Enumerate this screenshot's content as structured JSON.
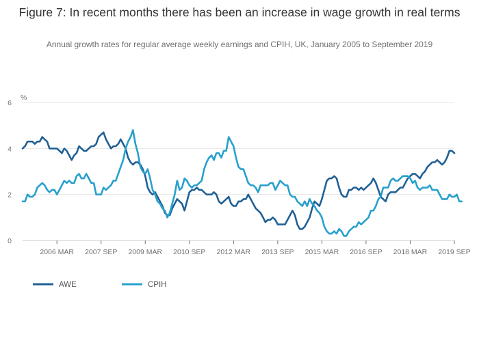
{
  "header": {
    "title": "Figure 7: In recent months there has been an increase in wage growth in real terms",
    "subtitle": "Annual growth rates for regular average weekly earnings and CPIH, UK, January 2005 to September 2019"
  },
  "chart_data": {
    "type": "line",
    "title": "Figure 7: In recent months there has been an increase in wage growth in real terms",
    "subtitle": "Annual growth rates for regular average weekly earnings and CPIH, UK, January 2005 to September 2019",
    "ylabel": "%",
    "xlabel": "",
    "ylim": [
      0,
      6
    ],
    "yticks": [
      0,
      2,
      4,
      6
    ],
    "xlim": [
      "2005-01",
      "2019-09"
    ],
    "xticks": [
      {
        "x": "2006-03",
        "label": "2006 MAR"
      },
      {
        "x": "2007-09",
        "label": "2007 SEP"
      },
      {
        "x": "2009-03",
        "label": "2009 MAR"
      },
      {
        "x": "2010-09",
        "label": "2010 SEP"
      },
      {
        "x": "2012-03",
        "label": "2012 MAR"
      },
      {
        "x": "2013-09",
        "label": "2013 SEP"
      },
      {
        "x": "2015-03",
        "label": "2015 MAR"
      },
      {
        "x": "2016-09",
        "label": "2016 SEP"
      },
      {
        "x": "2018-03",
        "label": "2018 MAR"
      },
      {
        "x": "2019-09",
        "label": "2019 SEP"
      }
    ],
    "grid": true,
    "legend": "bottom-left",
    "x_frequency": "monthly",
    "series": [
      {
        "name": "AWE",
        "color": "#206095",
        "x_start": "2005-01",
        "values": [
          4.0,
          4.1,
          4.3,
          4.3,
          4.3,
          4.2,
          4.3,
          4.3,
          4.5,
          4.4,
          4.3,
          4.0,
          4.0,
          4.0,
          4.0,
          3.9,
          3.8,
          4.0,
          3.9,
          3.7,
          3.5,
          3.7,
          3.8,
          4.1,
          4.0,
          3.9,
          3.9,
          4.0,
          4.1,
          4.1,
          4.2,
          4.5,
          4.6,
          4.7,
          4.4,
          4.2,
          4.0,
          4.1,
          4.1,
          4.2,
          4.4,
          4.2,
          4.0,
          3.6,
          3.4,
          3.3,
          3.4,
          3.4,
          3.3,
          3.1,
          2.8,
          2.3,
          2.1,
          2.0,
          2.1,
          1.9,
          1.7,
          1.5,
          1.2,
          1.1,
          1.1,
          1.4,
          1.6,
          1.8,
          1.7,
          1.6,
          1.3,
          1.7,
          2.1,
          2.2,
          2.2,
          2.3,
          2.2,
          2.2,
          2.1,
          2.0,
          2.0,
          2.0,
          2.1,
          2.0,
          1.7,
          1.6,
          1.7,
          1.8,
          1.9,
          1.6,
          1.5,
          1.5,
          1.7,
          1.7,
          1.8,
          1.8,
          2.0,
          1.8,
          1.6,
          1.4,
          1.3,
          1.2,
          1.0,
          0.8,
          0.9,
          0.9,
          1.0,
          0.9,
          0.7,
          0.7,
          0.7,
          0.7,
          0.9,
          1.1,
          1.3,
          1.1,
          0.7,
          0.5,
          0.5,
          0.6,
          0.8,
          1.0,
          1.4,
          1.7,
          1.6,
          1.5,
          1.8,
          2.2,
          2.6,
          2.7,
          2.7,
          2.8,
          2.7,
          2.3,
          2.0,
          1.9,
          1.9,
          2.2,
          2.2,
          2.3,
          2.3,
          2.2,
          2.3,
          2.2,
          2.3,
          2.4,
          2.5,
          2.7,
          2.5,
          2.2,
          1.9,
          1.8,
          1.7,
          2.0,
          2.1,
          2.1,
          2.1,
          2.2,
          2.3,
          2.3,
          2.5,
          2.7,
          2.8,
          2.9,
          2.9,
          2.8,
          2.7,
          2.9,
          3.0,
          3.2,
          3.3,
          3.4,
          3.4,
          3.5,
          3.4,
          3.3,
          3.4,
          3.6,
          3.9,
          3.9,
          3.8
        ]
      },
      {
        "name": "CPIH",
        "color": "#27A0CC",
        "x_start": "2005-01",
        "values": [
          1.7,
          1.7,
          2.0,
          1.9,
          1.9,
          2.0,
          2.3,
          2.4,
          2.5,
          2.4,
          2.2,
          2.1,
          2.2,
          2.2,
          2.0,
          2.2,
          2.4,
          2.6,
          2.5,
          2.6,
          2.5,
          2.5,
          2.8,
          2.9,
          2.7,
          2.7,
          2.9,
          2.7,
          2.5,
          2.5,
          2.0,
          2.0,
          2.0,
          2.3,
          2.2,
          2.3,
          2.4,
          2.6,
          2.6,
          2.9,
          3.2,
          3.5,
          4.0,
          4.3,
          4.5,
          4.8,
          4.2,
          3.8,
          3.2,
          3.0,
          2.9,
          3.1,
          2.7,
          2.2,
          2.0,
          1.7,
          1.6,
          1.4,
          1.3,
          1.0,
          1.2,
          1.6,
          2.0,
          2.6,
          2.2,
          2.3,
          2.7,
          2.6,
          2.4,
          2.3,
          2.4,
          2.4,
          2.5,
          2.6,
          3.1,
          3.4,
          3.6,
          3.7,
          3.5,
          3.8,
          3.8,
          3.6,
          3.9,
          3.9,
          4.5,
          4.3,
          4.1,
          3.6,
          3.2,
          3.1,
          3.1,
          2.8,
          2.5,
          2.4,
          2.4,
          2.3,
          2.1,
          2.4,
          2.4,
          2.4,
          2.4,
          2.5,
          2.5,
          2.2,
          2.4,
          2.6,
          2.5,
          2.4,
          2.4,
          2.0,
          1.9,
          1.9,
          1.7,
          1.6,
          1.5,
          1.7,
          1.5,
          1.8,
          1.6,
          1.5,
          1.3,
          1.2,
          1.0,
          0.6,
          0.4,
          0.3,
          0.3,
          0.4,
          0.3,
          0.5,
          0.4,
          0.2,
          0.2,
          0.4,
          0.5,
          0.6,
          0.6,
          0.8,
          0.7,
          0.8,
          0.9,
          1.0,
          1.3,
          1.3,
          1.5,
          1.8,
          1.9,
          2.3,
          2.3,
          2.3,
          2.6,
          2.7,
          2.6,
          2.6,
          2.7,
          2.8,
          2.8,
          2.8,
          2.7,
          2.5,
          2.6,
          2.3,
          2.2,
          2.3,
          2.3,
          2.3,
          2.4,
          2.2,
          2.2,
          2.2,
          2.0,
          1.8,
          1.8,
          1.8,
          2.0,
          1.9,
          1.9,
          2.0,
          1.7,
          1.7
        ]
      }
    ]
  }
}
